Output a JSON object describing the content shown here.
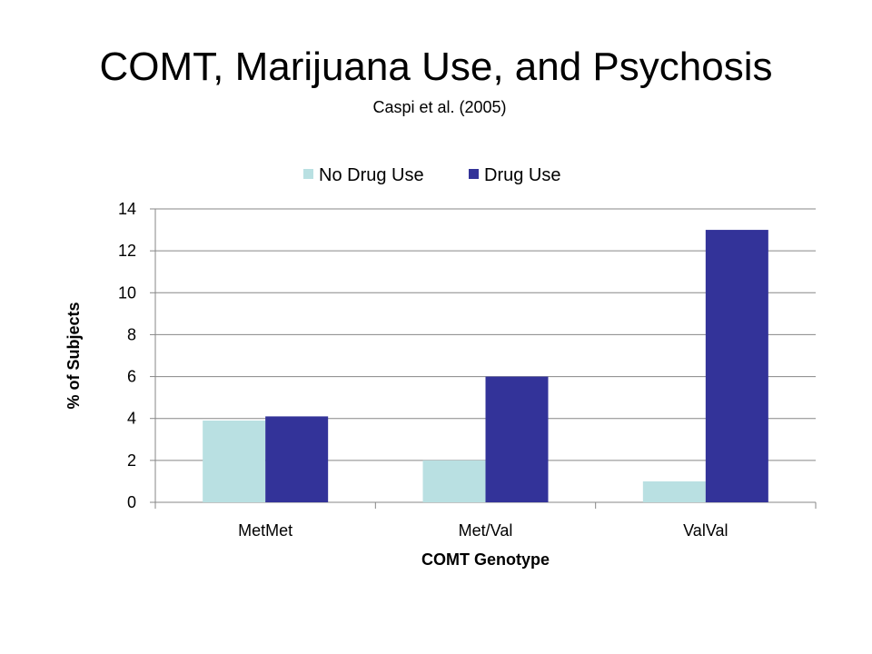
{
  "slide": {
    "title": "COMT, Marijuana Use, and Psychosis",
    "subtitle": "Caspi et al. (2005)"
  },
  "colors": {
    "no_drug_use": "#b9e0e2",
    "drug_use": "#333399",
    "gridline": "#878787",
    "axis": "#878787",
    "text": "#000000"
  },
  "chart_data": {
    "type": "bar",
    "categories": [
      "MetMet",
      "Met/Val",
      "ValVal"
    ],
    "series": [
      {
        "name": "No Drug Use",
        "values": [
          3.9,
          2,
          1
        ]
      },
      {
        "name": "Drug Use",
        "values": [
          4.1,
          6,
          13
        ]
      }
    ],
    "title": "",
    "xlabel": "COMT Genotype",
    "ylabel": "% of Subjects",
    "ylim": [
      0,
      14
    ],
    "yticks": [
      "0",
      "2",
      "4",
      "6",
      "8",
      "10",
      "12",
      "14"
    ],
    "grid": true,
    "legend_position": "top"
  }
}
